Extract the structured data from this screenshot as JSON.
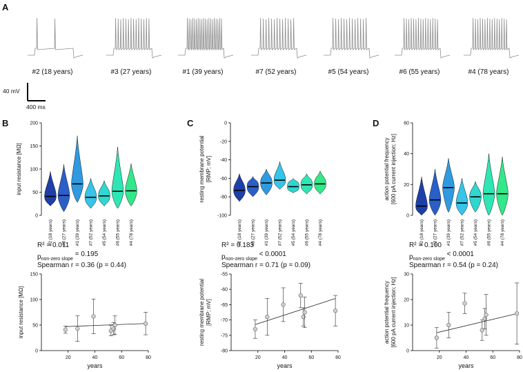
{
  "panel_letters": {
    "a": "A",
    "b": "B",
    "c": "C",
    "d": "D"
  },
  "traces": [
    {
      "label": "#2 (18 years)",
      "spikes": 2
    },
    {
      "label": "#3 (27 years)",
      "spikes": 14
    },
    {
      "label": "#1 (39 years)",
      "spikes": 20
    },
    {
      "label": "#7 (52 years)",
      "spikes": 13
    },
    {
      "label": "#5 (54 years)",
      "spikes": 13
    },
    {
      "label": "#6 (55 years)",
      "spikes": 15
    },
    {
      "label": "#4 (78 years)",
      "spikes": 15
    }
  ],
  "scale_bar": {
    "voltage": "40 mV",
    "time": "400 ms"
  },
  "colors": {
    "#2 (18 years)": "#1f3fa8",
    "#3 (27 years)": "#2a5fc8",
    "#1 (39 years)": "#2f9ae0",
    "#7 (52 years)": "#36c4e8",
    "#5 (54 years)": "#2fd7cf",
    "#6 (55 years)": "#2ee6b4",
    "#4 (78 years)": "#33e88a"
  },
  "chart_data": [
    {
      "type": "violin",
      "ylabel": "input resistance [MΩ]",
      "ylim": [
        0,
        200
      ],
      "yticks": [
        "0",
        "50",
        "100",
        "150",
        "200"
      ],
      "categories": [
        "#2 (18 years)",
        "#3 (27 years)",
        "#1 (39 years)",
        "#7 (52 years)",
        "#5 (54 years)",
        "#6 (55 years)",
        "#4 (78 years)"
      ],
      "medians": [
        41,
        43,
        68,
        39,
        42,
        52,
        53
      ],
      "ranges": [
        [
          20,
          95
        ],
        [
          8,
          110
        ],
        [
          28,
          172
        ],
        [
          15,
          80
        ],
        [
          20,
          75
        ],
        [
          15,
          148
        ],
        [
          20,
          112
        ]
      ]
    },
    {
      "type": "violin",
      "ylabel": "resting membrane potential",
      "ylabel2": "[RMP; mV]",
      "ylim": [
        -100,
        0
      ],
      "yticks": [
        "0",
        "-20",
        "-40",
        "-60",
        "-80",
        "-100"
      ],
      "categories": [
        "#2 (18 years)",
        "#3 (27 years)",
        "#1 (39 years)",
        "#7 (52 years)",
        "#5 (54 years)",
        "#6 (55 years)",
        "#4 (78 years)"
      ],
      "medians": [
        -73,
        -69,
        -65,
        -62,
        -69,
        -67,
        -66
      ],
      "ranges": [
        [
          -85,
          -55
        ],
        [
          -80,
          -58
        ],
        [
          -78,
          -50
        ],
        [
          -72,
          -42
        ],
        [
          -76,
          -60
        ],
        [
          -77,
          -55
        ],
        [
          -77,
          -52
        ]
      ]
    },
    {
      "type": "violin",
      "ylabel": "action potential frequency",
      "ylabel2": "[600 pA current injection; Hz]",
      "ylim": [
        0,
        60
      ],
      "yticks": [
        "0",
        "20",
        "40",
        "60"
      ],
      "categories": [
        "#2 (18 years)",
        "#3 (27 years)",
        "#1 (39 years)",
        "#7 (52 years)",
        "#5 (54 years)",
        "#6 (55 years)",
        "#4 (78 years)"
      ],
      "medians": [
        6,
        10,
        18,
        8,
        12,
        14,
        14
      ],
      "ranges": [
        [
          0,
          25
        ],
        [
          0,
          30
        ],
        [
          2,
          37
        ],
        [
          0,
          24
        ],
        [
          2,
          22
        ],
        [
          0,
          40
        ],
        [
          0,
          38
        ]
      ]
    },
    {
      "type": "scatter",
      "stats": {
        "r2": "R² = 0.011",
        "p_prefix": "p",
        "p_sub": "non-zero slope",
        "p_value": " = 0.195",
        "spearman": "Spearman r = 0.36 (p = 0.44)"
      },
      "ylabel": "input resistance [MΩ]",
      "xlabel": "years",
      "xlim": [
        0,
        80
      ],
      "ylim": [
        0,
        150
      ],
      "xticks": [
        "20",
        "40",
        "60",
        "80"
      ],
      "yticks": [
        "0",
        "50",
        "100",
        "150"
      ],
      "points": [
        {
          "x": 18,
          "y": 41,
          "err": 7
        },
        {
          "x": 27,
          "y": 43,
          "err": 25
        },
        {
          "x": 39,
          "y": 67,
          "err": 34
        },
        {
          "x": 52,
          "y": 39,
          "err": 10
        },
        {
          "x": 54,
          "y": 43,
          "err": 12
        },
        {
          "x": 55,
          "y": 50,
          "err": 18
        },
        {
          "x": 78,
          "y": 53,
          "err": 22
        }
      ],
      "fit": {
        "x": [
          18,
          78
        ],
        "y": [
          47,
          53
        ]
      }
    },
    {
      "type": "scatter",
      "stats": {
        "r2": "R² = 0.183",
        "p_prefix": "p",
        "p_sub": "non-zero slope",
        "p_value": " < 0.0001",
        "spearman": "Spearman r = 0.71 (p = 0.09)"
      },
      "ylabel": "resting membrane potential",
      "ylabel2": "[RMP; mV]",
      "xlabel": "years",
      "xlim": [
        0,
        80
      ],
      "ylim": [
        -80,
        -55
      ],
      "xticks": [
        "20",
        "40",
        "60",
        "80"
      ],
      "yticks": [
        "-55",
        "-60",
        "-65",
        "-70",
        "-75",
        "-80"
      ],
      "points": [
        {
          "x": 18,
          "y": -73,
          "err": 3
        },
        {
          "x": 27,
          "y": -69,
          "err": 6
        },
        {
          "x": 39,
          "y": -65,
          "err": 5.5
        },
        {
          "x": 52,
          "y": -62,
          "err": 4
        },
        {
          "x": 54,
          "y": -69,
          "err": 3
        },
        {
          "x": 55,
          "y": -67.5,
          "err": 5
        },
        {
          "x": 78,
          "y": -67,
          "err": 5
        }
      ],
      "fit": {
        "x": [
          18,
          78
        ],
        "y": [
          -71.5,
          -63
        ]
      }
    },
    {
      "type": "scatter",
      "stats": {
        "r2": "R² = 0.100",
        "p_prefix": "p",
        "p_sub": "non-zero slope",
        "p_value": " < 0.0001",
        "spearman": "Spearman r = 0.54 (p = 0.24)"
      },
      "ylabel": "action potential frequency",
      "ylabel2": "[600 pA current injection; Hz]",
      "xlabel": "years",
      "xlim": [
        0,
        80
      ],
      "ylim": [
        0,
        30
      ],
      "xticks": [
        "20",
        "40",
        "60",
        "80"
      ],
      "yticks": [
        "0",
        "10",
        "20",
        "30"
      ],
      "points": [
        {
          "x": 18,
          "y": 5,
          "err": 4
        },
        {
          "x": 27,
          "y": 10,
          "err": 5
        },
        {
          "x": 39,
          "y": 18.5,
          "err": 4
        },
        {
          "x": 52,
          "y": 8,
          "err": 4
        },
        {
          "x": 54,
          "y": 12.5,
          "err": 4
        },
        {
          "x": 55,
          "y": 14,
          "err": 8
        },
        {
          "x": 78,
          "y": 14.5,
          "err": 12
        }
      ],
      "fit": {
        "x": [
          18,
          78
        ],
        "y": [
          7,
          14.5
        ]
      }
    }
  ]
}
